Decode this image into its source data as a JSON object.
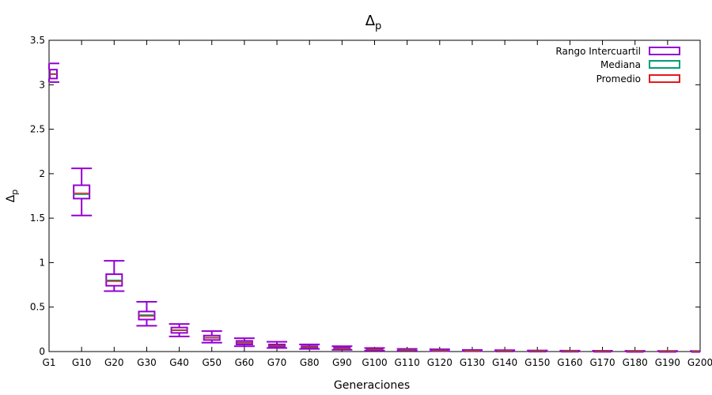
{
  "chart_data": {
    "type": "boxplot",
    "title": "Δp",
    "title_main": "Δ",
    "title_sub": "p",
    "xlabel": "Generaciones",
    "ylabel": "Δp",
    "ylabel_main": "Δ",
    "ylabel_sub": "p",
    "ylim": [
      0,
      3.5
    ],
    "yticks": [
      0,
      0.5,
      1,
      1.5,
      2,
      2.5,
      3,
      3.5
    ],
    "ytick_labels": [
      "0",
      "0.5",
      "1",
      "1.5",
      "2",
      "2.5",
      "3",
      "3.5"
    ],
    "categories": [
      "G1",
      "G10",
      "G20",
      "G30",
      "G40",
      "G50",
      "G60",
      "G70",
      "G80",
      "G90",
      "G100",
      "G110",
      "G120",
      "G130",
      "G140",
      "G150",
      "G160",
      "G170",
      "G180",
      "G190",
      "G200"
    ],
    "series": [
      {
        "name": "Rango Intercuartil",
        "color": "#9400d3",
        "whisker_low": [
          3.03,
          1.53,
          0.68,
          0.29,
          0.17,
          0.1,
          0.06,
          0.04,
          0.03,
          0.02,
          0.01,
          0.01,
          0.005,
          0.004,
          0.003,
          0.003,
          0.002,
          0.002,
          0.002,
          0.002,
          0.001
        ],
        "q1": [
          3.07,
          1.72,
          0.74,
          0.36,
          0.21,
          0.13,
          0.08,
          0.05,
          0.04,
          0.025,
          0.015,
          0.012,
          0.008,
          0.006,
          0.005,
          0.004,
          0.004,
          0.003,
          0.003,
          0.003,
          0.002
        ],
        "q3": [
          3.17,
          1.87,
          0.87,
          0.45,
          0.27,
          0.18,
          0.12,
          0.08,
          0.06,
          0.045,
          0.03,
          0.022,
          0.016,
          0.012,
          0.01,
          0.008,
          0.007,
          0.006,
          0.005,
          0.005,
          0.004
        ],
        "whisker_high": [
          3.24,
          2.06,
          1.02,
          0.56,
          0.31,
          0.23,
          0.15,
          0.11,
          0.08,
          0.06,
          0.04,
          0.03,
          0.025,
          0.018,
          0.015,
          0.012,
          0.01,
          0.009,
          0.008,
          0.007,
          0.006
        ]
      },
      {
        "name": "Mediana",
        "color": "#009e73",
        "values": [
          3.12,
          1.77,
          0.8,
          0.41,
          0.24,
          0.155,
          0.1,
          0.065,
          0.05,
          0.035,
          0.022,
          0.017,
          0.012,
          0.009,
          0.007,
          0.006,
          0.005,
          0.004,
          0.004,
          0.004,
          0.003
        ]
      },
      {
        "name": "Promedio",
        "color": "#e41a1c",
        "values": [
          3.12,
          1.78,
          0.79,
          0.4,
          0.24,
          0.155,
          0.1,
          0.065,
          0.05,
          0.035,
          0.022,
          0.017,
          0.012,
          0.009,
          0.007,
          0.006,
          0.005,
          0.004,
          0.004,
          0.004,
          0.003
        ]
      }
    ],
    "legend_position": "top-right",
    "grid": false
  }
}
